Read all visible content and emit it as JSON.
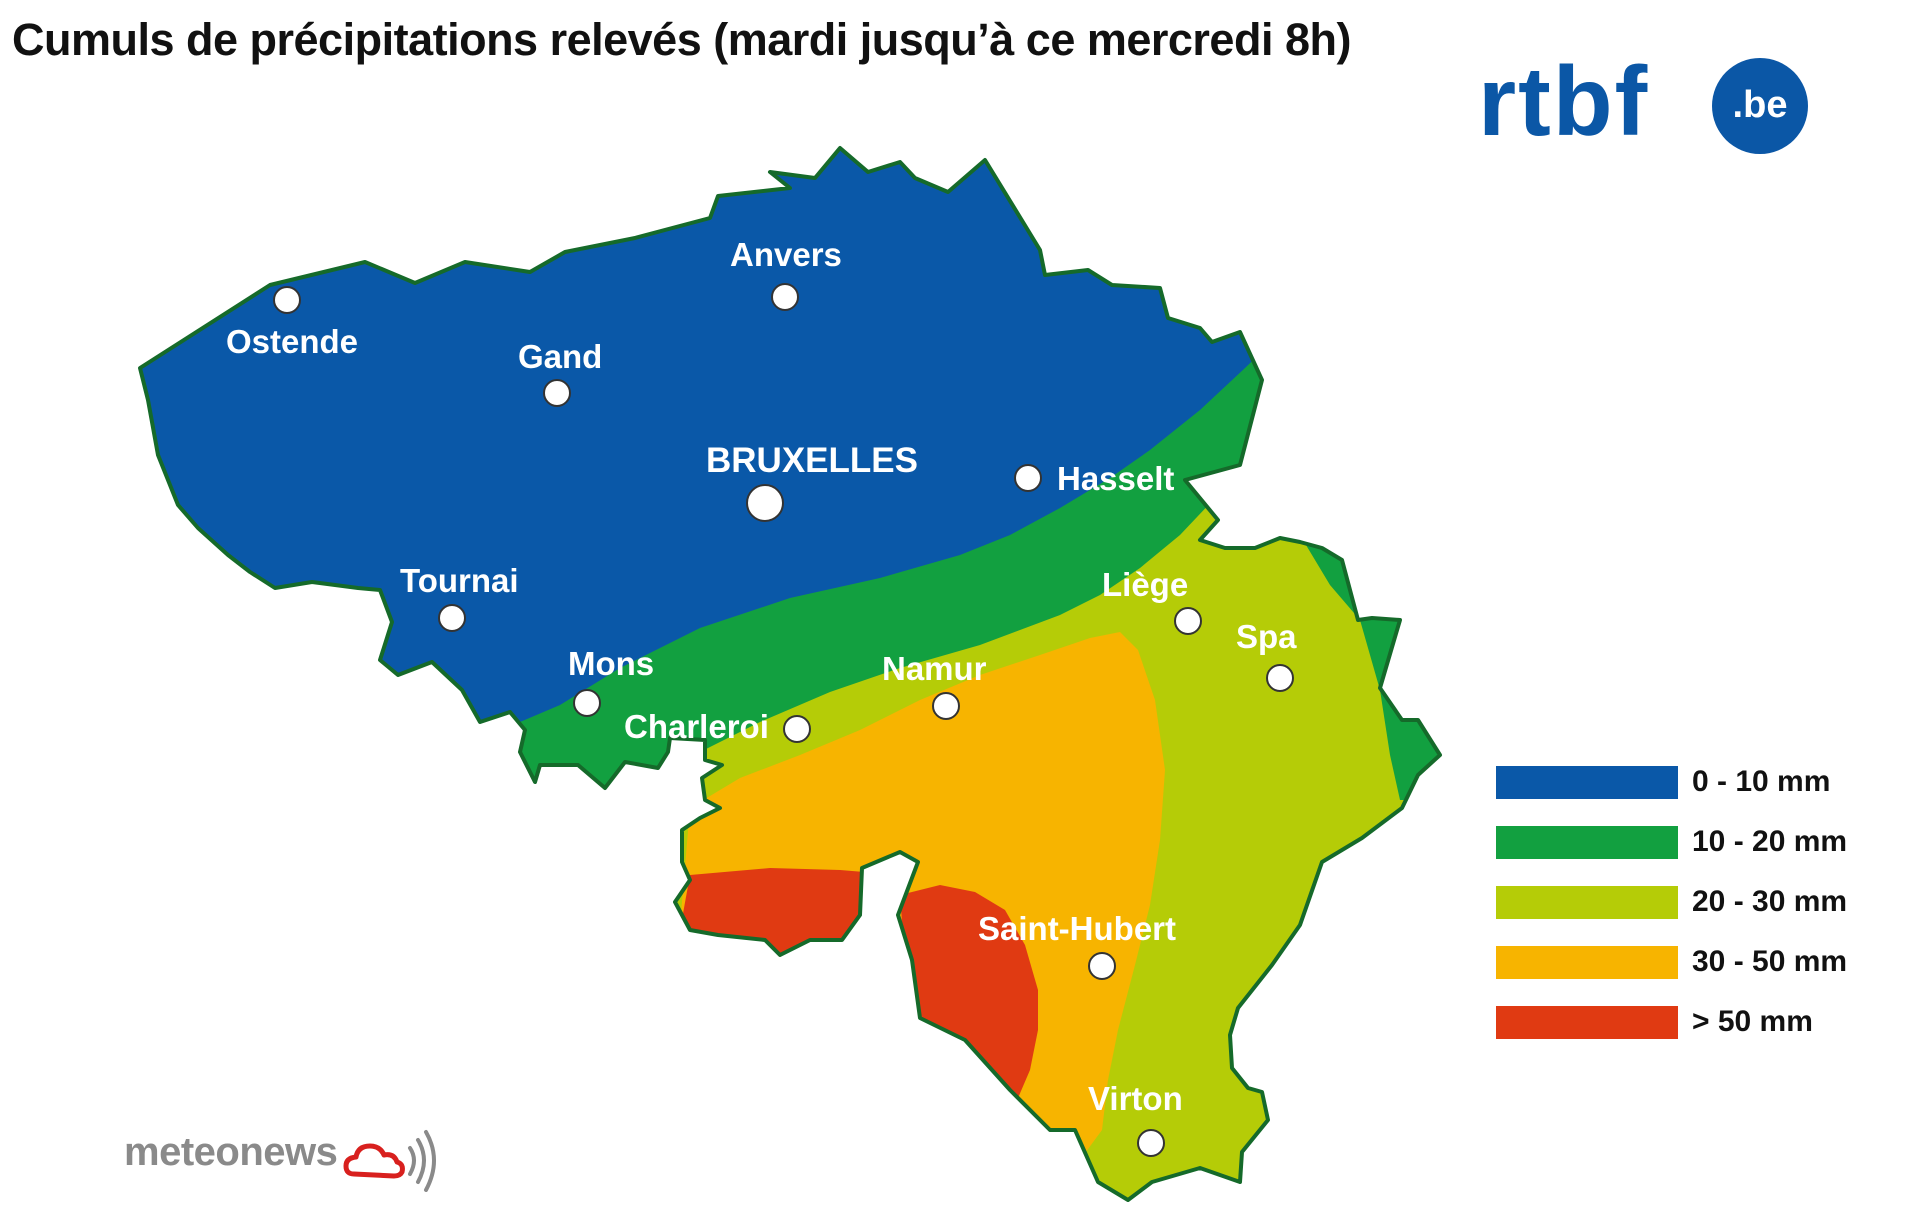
{
  "title": "Cumuls de précipitations relevés (mardi jusqu’à ce mercredi 8h)",
  "brand": {
    "name": "rtbf",
    "suffix": ".be",
    "color": "#0b57a6"
  },
  "credit": {
    "name": "meteonews",
    "icon": "cloud-signal-icon"
  },
  "map": {
    "country": "Belgique",
    "colors": {
      "zone_0_10": "#0a58a8",
      "zone_10_20": "#12a040",
      "zone_20_30": "#b5cc07",
      "zone_30_50": "#f7b400",
      "zone_50_plus": "#e03a12",
      "border": "#156a2a"
    },
    "cities": [
      {
        "id": "ostende",
        "name": "Ostende"
      },
      {
        "id": "gand",
        "name": "Gand"
      },
      {
        "id": "anvers",
        "name": "Anvers"
      },
      {
        "id": "bruxelles",
        "name": "BRUXELLES",
        "capital": true
      },
      {
        "id": "hasselt",
        "name": "Hasselt"
      },
      {
        "id": "tournai",
        "name": "Tournai"
      },
      {
        "id": "mons",
        "name": "Mons"
      },
      {
        "id": "charleroi",
        "name": "Charleroi"
      },
      {
        "id": "namur",
        "name": "Namur"
      },
      {
        "id": "liege",
        "name": "Liège"
      },
      {
        "id": "spa",
        "name": "Spa"
      },
      {
        "id": "saint_hubert",
        "name": "Saint-Hubert"
      },
      {
        "id": "virton",
        "name": "Virton"
      }
    ]
  },
  "legend": [
    {
      "label": "0 - 10 mm",
      "color": "#0a58a8"
    },
    {
      "label": "10 - 20 mm",
      "color": "#12a040"
    },
    {
      "label": "20 - 30 mm",
      "color": "#b5cc07"
    },
    {
      "label": "30 - 50 mm",
      "color": "#f7b400"
    },
    {
      "label": "> 50 mm",
      "color": "#e03a12"
    }
  ]
}
